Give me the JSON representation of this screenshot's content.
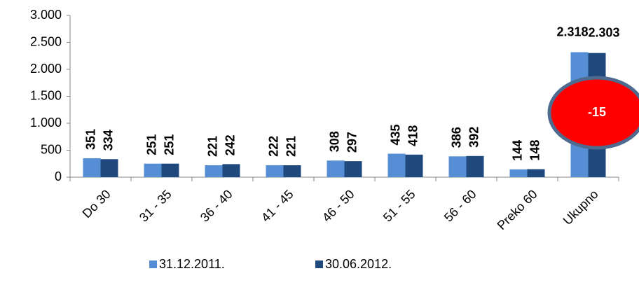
{
  "chart_data": {
    "type": "bar",
    "categories": [
      "Do 30",
      "31 - 35",
      "36 - 40",
      "41 - 45",
      "46 - 50",
      "51 - 55",
      "56 - 60",
      "Preko 60",
      "Ukupno"
    ],
    "series": [
      {
        "name": "31.12.2011.",
        "color": "#558ed5",
        "values": [
          351,
          251,
          221,
          222,
          308,
          435,
          386,
          144,
          2318
        ],
        "value_labels": [
          "351",
          "251",
          "221",
          "222",
          "308",
          "435",
          "386",
          "144",
          "2.318"
        ]
      },
      {
        "name": "30.06.2012.",
        "color": "#1f497d",
        "values": [
          334,
          251,
          242,
          221,
          297,
          418,
          392,
          148,
          2303
        ],
        "value_labels": [
          "334",
          "251",
          "242",
          "221",
          "297",
          "418",
          "392",
          "148",
          "2.303"
        ]
      }
    ],
    "ylim": [
      0,
      3000
    ],
    "yticks": [
      0,
      500,
      {
        "value": 1000,
        "label": "1.000"
      },
      {
        "value": 1500,
        "label": "1.500"
      },
      {
        "value": 2000,
        "label": "2.000"
      },
      {
        "value": 2500,
        "label": "2.500"
      },
      {
        "value": 3000,
        "label": "3.000"
      }
    ],
    "grid": false,
    "legend": "bottom",
    "annotations": [
      {
        "text": "-15"
      }
    ]
  }
}
